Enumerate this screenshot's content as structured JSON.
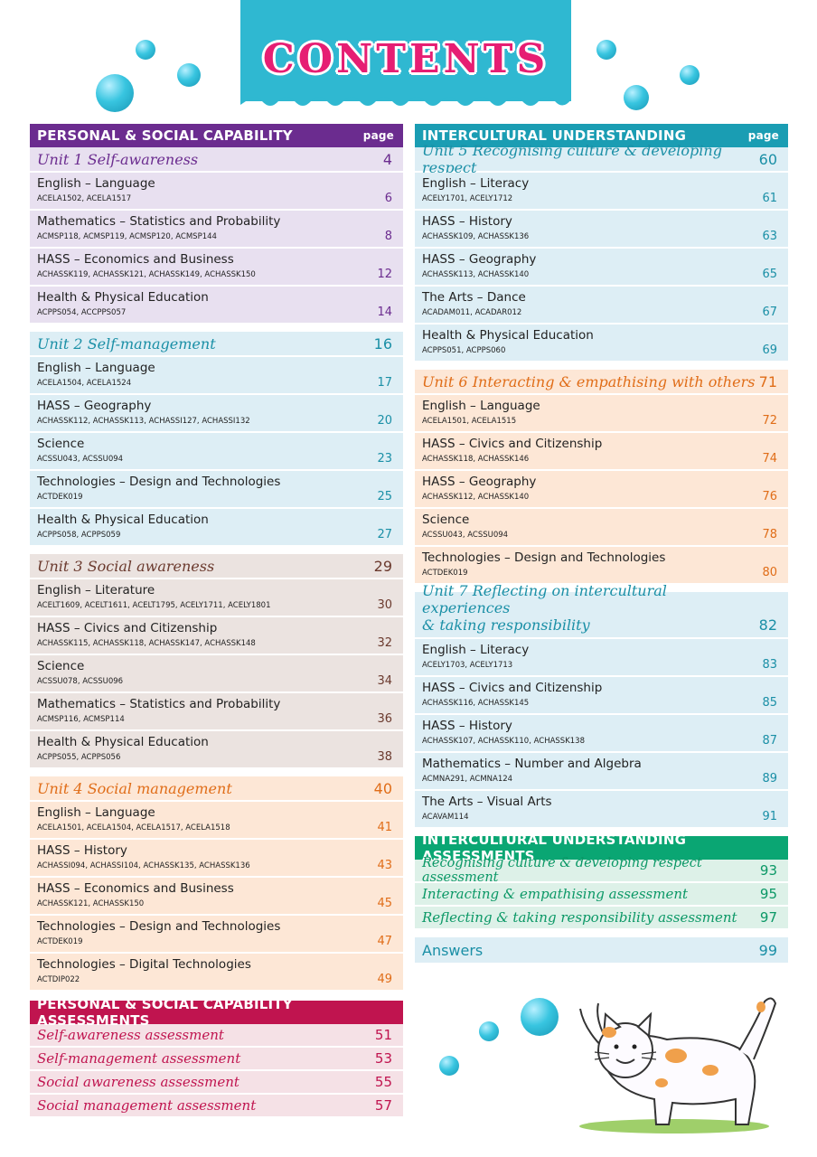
{
  "title": "CONTENTS",
  "page_col_label": "page",
  "left": {
    "psc": {
      "heading": "PERSONAL & SOCIAL CAPABILITY",
      "units": [
        {
          "title": "Unit 1 Self-awareness",
          "page": "4",
          "items": [
            {
              "subject": "English – Language",
              "codes": "ACELA1502, ACELA1517",
              "page": "6"
            },
            {
              "subject": "Mathematics – Statistics and Probability",
              "codes": "ACMSP118, ACMSP119, ACMSP120, ACMSP144",
              "page": "8"
            },
            {
              "subject": "HASS – Economics and Business",
              "codes": "ACHASSK119, ACHASSK121, ACHASSK149, ACHASSK150",
              "page": "12"
            },
            {
              "subject": "Health & Physical Education",
              "codes": "ACPPS054, ACCPPS057",
              "page": "14"
            }
          ]
        },
        {
          "title": "Unit 2 Self-management",
          "page": "16",
          "items": [
            {
              "subject": "English – Language",
              "codes": "ACELA1504, ACELA1524",
              "page": "17"
            },
            {
              "subject": "HASS – Geography",
              "codes": "ACHASSK112, ACHASSK113, ACHASSI127, ACHASSI132",
              "page": "20"
            },
            {
              "subject": "Science",
              "codes": "ACSSU043, ACSSU094",
              "page": "23"
            },
            {
              "subject": "Technologies – Design and Technologies",
              "codes": "ACTDEK019",
              "page": "25"
            },
            {
              "subject": "Health & Physical Education",
              "codes": "ACPPS058, ACPPS059",
              "page": "27"
            }
          ]
        },
        {
          "title": "Unit 3 Social awareness",
          "page": "29",
          "items": [
            {
              "subject": "English – Literature",
              "codes": "ACELT1609, ACELT1611, ACELT1795, ACELY1711, ACELY1801",
              "page": "30"
            },
            {
              "subject": "HASS – Civics and Citizenship",
              "codes": "ACHASSK115, ACHASSK118, ACHASSK147, ACHASSK148",
              "page": "32"
            },
            {
              "subject": "Science",
              "codes": "ACSSU078, ACSSU096",
              "page": "34"
            },
            {
              "subject": "Mathematics – Statistics and Probability",
              "codes": "ACMSP116, ACMSP114",
              "page": "36"
            },
            {
              "subject": "Health & Physical Education",
              "codes": "ACPPS055, ACPPS056",
              "page": "38"
            }
          ]
        },
        {
          "title": "Unit 4 Social management",
          "page": "40",
          "items": [
            {
              "subject": "English – Language",
              "codes": "ACELA1501, ACELA1504, ACELA1517, ACELA1518",
              "page": "41"
            },
            {
              "subject": "HASS – History",
              "codes": "ACHASSI094, ACHASSI104, ACHASSK135, ACHASSK136",
              "page": "43"
            },
            {
              "subject": "HASS – Economics and Business",
              "codes": "ACHASSK121, ACHASSK150",
              "page": "45"
            },
            {
              "subject": "Technologies – Design and Technologies",
              "codes": "ACTDEK019",
              "page": "47"
            },
            {
              "subject": "Technologies – Digital Technologies",
              "codes": "ACTDIP022",
              "page": "49"
            }
          ]
        }
      ]
    },
    "psc_assess": {
      "heading": "PERSONAL & SOCIAL CAPABILITY ASSESSMENTS",
      "items": [
        {
          "title": "Self-awareness assessment",
          "page": "51"
        },
        {
          "title": "Self-management assessment",
          "page": "53"
        },
        {
          "title": "Social awareness assessment",
          "page": "55"
        },
        {
          "title": "Social management assessment",
          "page": "57"
        }
      ]
    }
  },
  "right": {
    "iu": {
      "heading": "INTERCULTURAL UNDERSTANDING",
      "units": [
        {
          "title": "Unit 5 Recognising culture & developing respect",
          "page": "60",
          "items": [
            {
              "subject": "English – Literacy",
              "codes": "ACELY1701, ACELY1712",
              "page": "61"
            },
            {
              "subject": "HASS – History",
              "codes": "ACHASSK109, ACHASSK136",
              "page": "63"
            },
            {
              "subject": "HASS – Geography",
              "codes": "ACHASSK113, ACHASSK140",
              "page": "65"
            },
            {
              "subject": "The Arts – Dance",
              "codes": "ACADAM011, ACADAR012",
              "page": "67"
            },
            {
              "subject": "Health & Physical Education",
              "codes": "ACPPS051, ACPPS060",
              "page": "69"
            }
          ]
        },
        {
          "title": "Unit 6 Interacting & empathising with others",
          "page": "71",
          "items": [
            {
              "subject": "English – Language",
              "codes": "ACELA1501, ACELA1515",
              "page": "72"
            },
            {
              "subject": "HASS – Civics and Citizenship",
              "codes": "ACHASSK118, ACHASSK146",
              "page": "74"
            },
            {
              "subject": "HASS – Geography",
              "codes": "ACHASSK112, ACHASSK140",
              "page": "76"
            },
            {
              "subject": "Science",
              "codes": "ACSSU043, ACSSU094",
              "page": "78"
            },
            {
              "subject": "Technologies – Design and Technologies",
              "codes": "ACTDEK019",
              "page": "80"
            }
          ]
        },
        {
          "title_line1": "Unit 7 Reflecting on intercultural experiences",
          "title_line2": "& taking responsibility",
          "page": "82",
          "items": [
            {
              "subject": "English – Literacy",
              "codes": "ACELY1703, ACELY1713",
              "page": "83"
            },
            {
              "subject": "HASS – Civics and Citizenship",
              "codes": "ACHASSK116, ACHASSK145",
              "page": "85"
            },
            {
              "subject": "HASS – History",
              "codes": "ACHASSK107, ACHASSK110, ACHASSK138",
              "page": "87"
            },
            {
              "subject": "Mathematics – Number and Algebra",
              "codes": "ACMNA291, ACMNA124",
              "page": "89"
            },
            {
              "subject": "The Arts – Visual Arts",
              "codes": "ACAVAM114",
              "page": "91"
            }
          ]
        }
      ]
    },
    "iu_assess": {
      "heading": "INTERCULTURAL UNDERSTANDING ASSESSMENTS",
      "items": [
        {
          "title": "Recognising culture & developing respect assessment",
          "page": "93"
        },
        {
          "title": "Interacting & empathising assessment",
          "page": "95"
        },
        {
          "title": "Reflecting & taking responsibility assessment",
          "page": "97"
        }
      ]
    },
    "answers": {
      "label": "Answers",
      "page": "99"
    }
  }
}
